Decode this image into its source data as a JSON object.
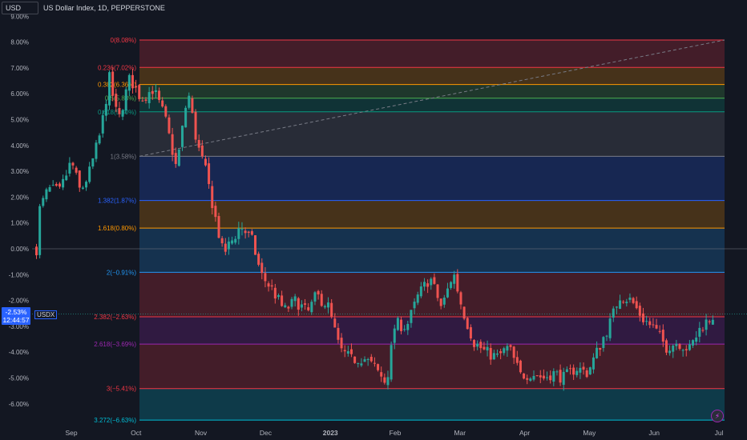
{
  "header": {
    "symbol_box": "USD",
    "title": "US Dollar Index, 1D, PEPPERSTONE"
  },
  "current_badge": {
    "value": "-2.53%",
    "time": "12:44:57",
    "tag": "USDX"
  },
  "colors": {
    "background": "#131722",
    "up": "#26a69a",
    "down": "#ef5350",
    "accent": "#2962ff"
  },
  "chart_data": {
    "type": "candlestick",
    "ylim": [
      -6.9,
      9.3
    ],
    "y_ticks": [
      9,
      8,
      7,
      6,
      5,
      4,
      3,
      2,
      1,
      0,
      -1,
      -2,
      -3,
      -4,
      -5,
      -6
    ],
    "y_tick_labels": [
      "9.00%",
      "8.00%",
      "7.00%",
      "6.00%",
      "5.00%",
      "4.00%",
      "3.00%",
      "2.00%",
      "1.00%",
      "0.00%",
      "-1.00%",
      "-2.00%",
      "-3.00%",
      "-4.00%",
      "-5.00%",
      "-6.00%"
    ],
    "x_labels": [
      "Sep",
      "Oct",
      "Nov",
      "Dec",
      "2023",
      "Feb",
      "Mar",
      "Apr",
      "May",
      "Jun",
      "Jul"
    ],
    "price_path": [
      [
        0.0,
        0.0
      ],
      [
        0.1,
        1.5
      ],
      [
        0.4,
        2.3
      ],
      [
        0.8,
        2.2
      ],
      [
        1.2,
        3.4
      ],
      [
        1.5,
        2.2
      ],
      [
        1.8,
        2.9
      ],
      [
        2.2,
        4.5
      ],
      [
        2.5,
        6.6
      ],
      [
        2.8,
        4.9
      ],
      [
        3.2,
        6.6
      ],
      [
        3.6,
        5.8
      ],
      [
        4.0,
        6.2
      ],
      [
        4.4,
        5.1
      ],
      [
        4.8,
        3.1
      ],
      [
        5.2,
        6.1
      ],
      [
        5.5,
        4.1
      ],
      [
        5.8,
        3.0
      ],
      [
        6.1,
        1.4
      ],
      [
        6.4,
        -0.2
      ],
      [
        6.7,
        0.3
      ],
      [
        7.0,
        0.9
      ],
      [
        7.4,
        0.3
      ],
      [
        7.7,
        -1.0
      ],
      [
        8.1,
        -1.6
      ],
      [
        8.5,
        -2.4
      ],
      [
        8.9,
        -2.0
      ],
      [
        9.3,
        -2.5
      ],
      [
        9.6,
        -1.8
      ],
      [
        10.0,
        -2.2
      ],
      [
        10.4,
        -3.9
      ],
      [
        10.8,
        -4.3
      ],
      [
        11.2,
        -4.2
      ],
      [
        11.6,
        -4.6
      ],
      [
        12.0,
        -5.2
      ],
      [
        12.3,
        -2.9
      ],
      [
        12.7,
        -3.0
      ],
      [
        13.1,
        -1.8
      ],
      [
        13.5,
        -1.1
      ],
      [
        13.9,
        -2.3
      ],
      [
        14.3,
        -0.9
      ],
      [
        14.6,
        -2.3
      ],
      [
        15.0,
        -3.6
      ],
      [
        15.4,
        -4.0
      ],
      [
        15.8,
        -4.2
      ],
      [
        16.2,
        -3.8
      ],
      [
        16.6,
        -4.9
      ],
      [
        17.0,
        -4.8
      ],
      [
        17.4,
        -5.0
      ],
      [
        17.7,
        -4.8
      ],
      [
        18.1,
        -5.0
      ],
      [
        18.5,
        -4.6
      ],
      [
        18.9,
        -4.8
      ],
      [
        19.3,
        -3.8
      ],
      [
        19.7,
        -2.8
      ],
      [
        20.0,
        -1.8
      ],
      [
        20.4,
        -2.0
      ],
      [
        20.8,
        -2.7
      ],
      [
        21.2,
        -3.1
      ],
      [
        21.6,
        -3.8
      ],
      [
        22.0,
        -3.6
      ],
      [
        22.4,
        -3.9
      ],
      [
        22.8,
        -3.0
      ],
      [
        23.2,
        -2.6
      ]
    ],
    "fib_levels": [
      {
        "ratio": "0",
        "value": 8.08,
        "label": "0(8.08%)"
      },
      {
        "ratio": "0.236",
        "value": 7.02,
        "label": "0.236(7.02%)"
      },
      {
        "ratio": "0.382",
        "value": 6.36,
        "label": "0.382(6.36%)"
      },
      {
        "ratio": "0.5",
        "value": 5.83,
        "label": "0.5(5.83%)"
      },
      {
        "ratio": "0.618",
        "value": 5.3,
        "label": "0.618(5.30%)"
      },
      {
        "ratio": "1",
        "value": 3.58,
        "label": "1(3.58%)"
      },
      {
        "ratio": "1.382",
        "value": 1.87,
        "label": "1.382(1.87%)"
      },
      {
        "ratio": "1.618",
        "value": 0.8,
        "label": "1.618(0.80%)"
      },
      {
        "ratio": "2",
        "value": -0.91,
        "label": "2(−0.91%)"
      },
      {
        "ratio": "2.382",
        "value": -2.63,
        "label": "2.382(−2.63%)"
      },
      {
        "ratio": "2.618",
        "value": -3.69,
        "label": "2.618(−3.69%)"
      },
      {
        "ratio": "3",
        "value": -5.41,
        "label": "3(−5.41%)"
      },
      {
        "ratio": "3.272",
        "value": -6.63,
        "label": "3.272(−6.63%)"
      }
    ],
    "fib_colors": [
      "#f23645",
      "#f23645",
      "#ff9800",
      "#4caf50",
      "#089981",
      "#787b86",
      "#2962ff",
      "#ff9800",
      "#2196f3",
      "#f23645",
      "#9c27b0",
      "#f23645",
      "#00bcd4",
      "#787b86"
    ],
    "current_value": -2.53
  }
}
